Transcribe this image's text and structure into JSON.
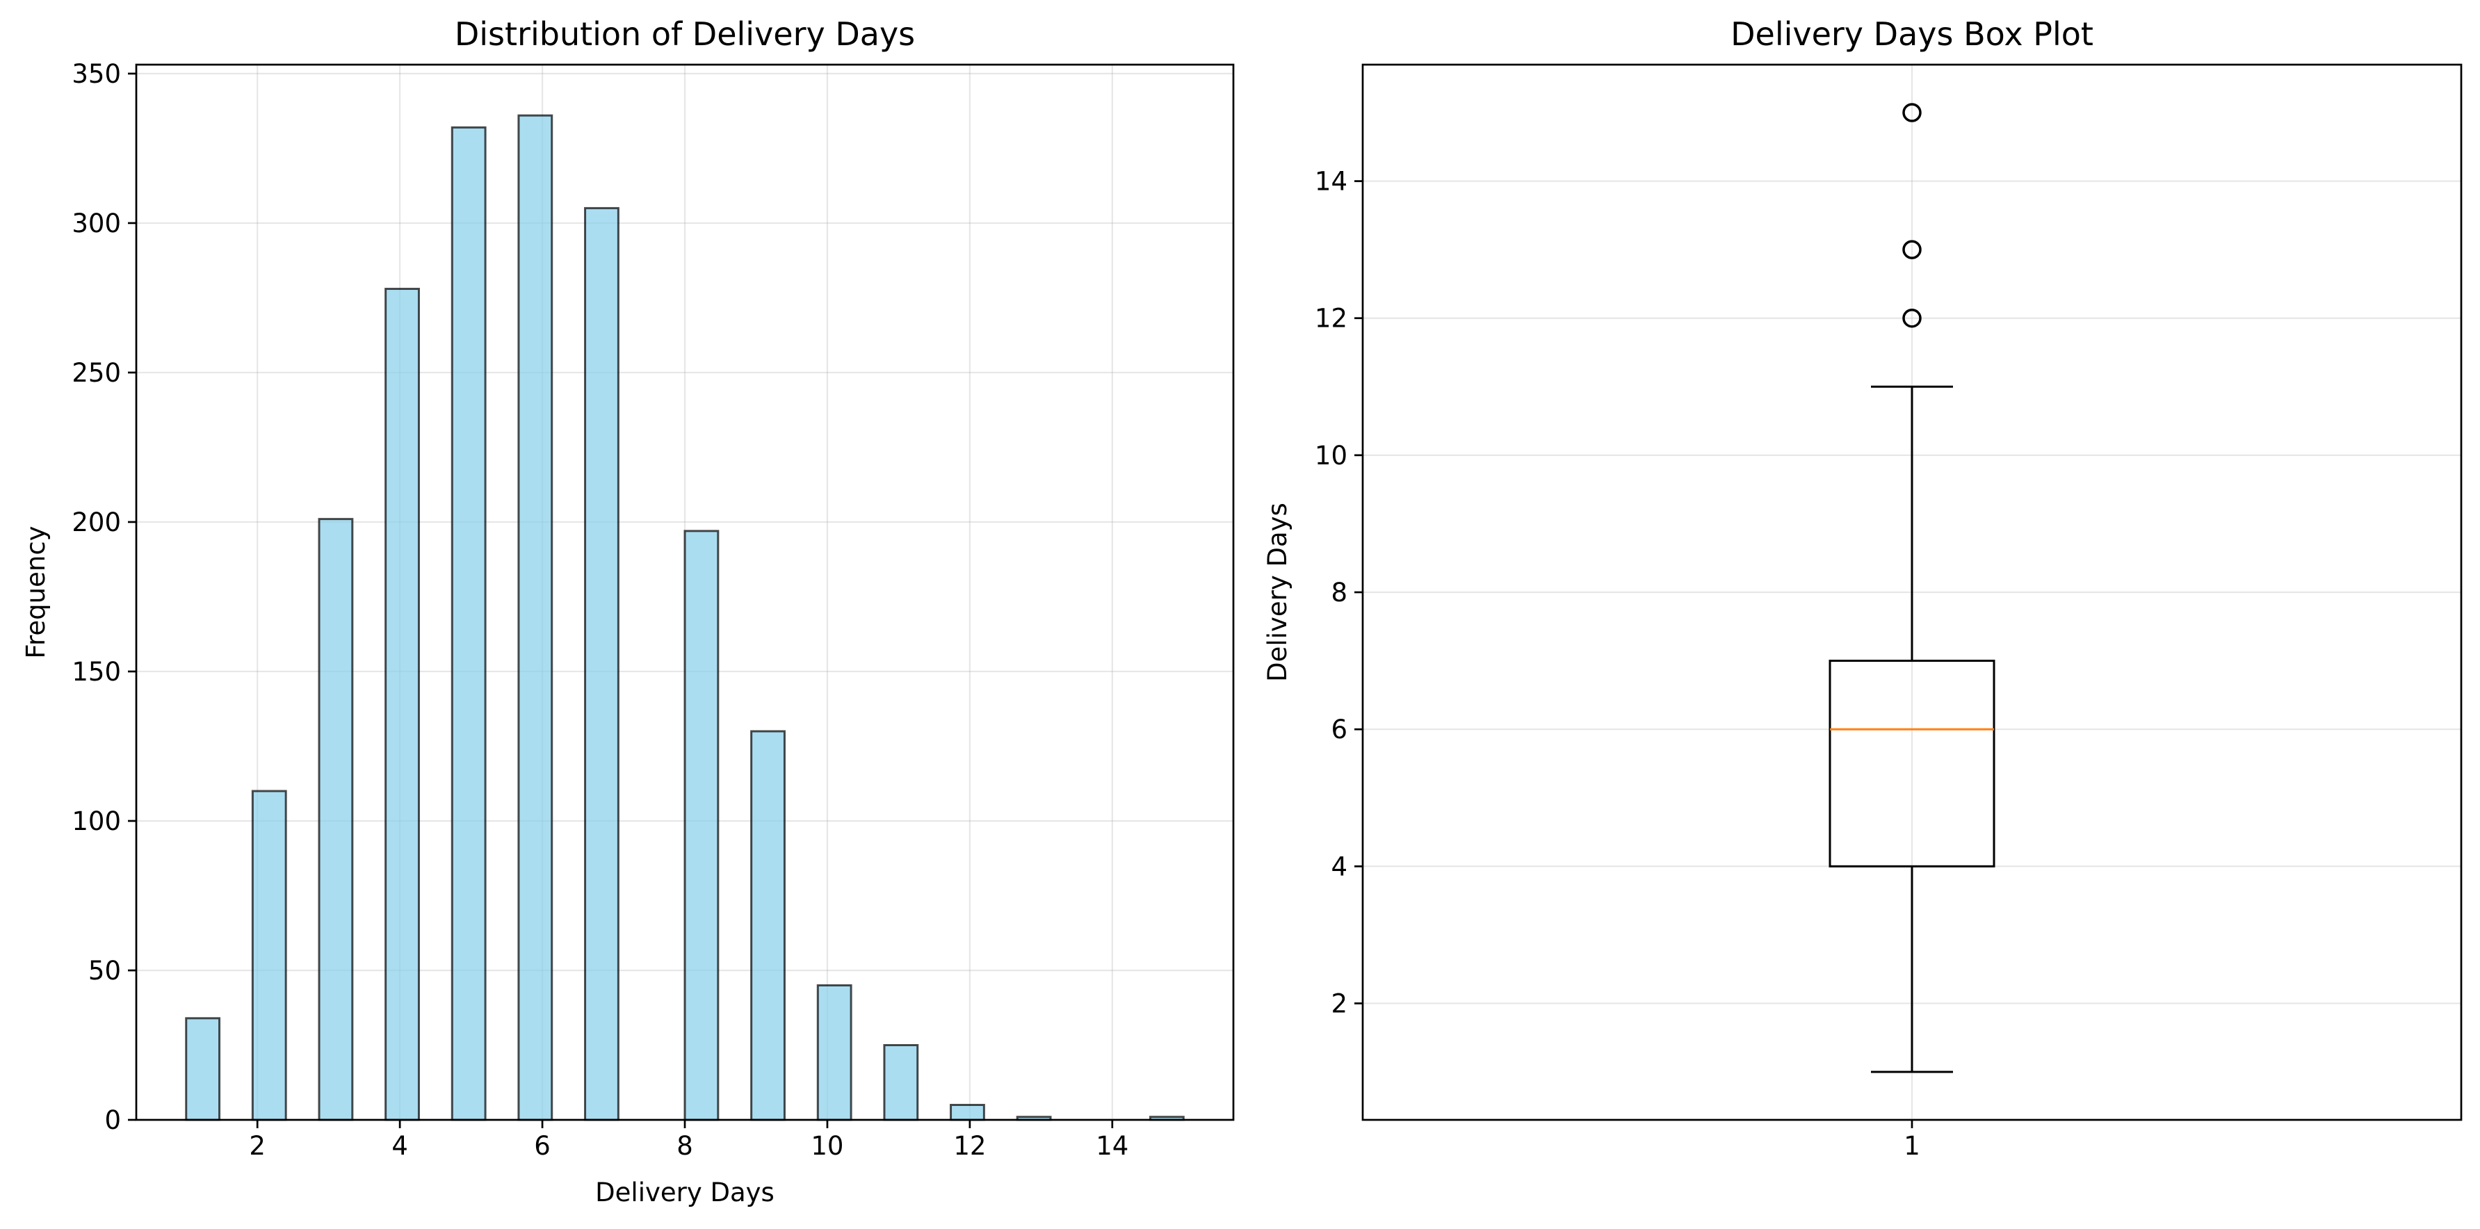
{
  "chart_data": [
    {
      "type": "bar",
      "title": "Distribution of Delivery Days",
      "xlabel": "Delivery Days",
      "ylabel": "Frequency",
      "xlim": [
        0.3,
        15.7
      ],
      "ylim": [
        0,
        353
      ],
      "xticks": [
        "2",
        "4",
        "6",
        "8",
        "10",
        "12",
        "14"
      ],
      "yticks": [
        "0",
        "50",
        "100",
        "150",
        "200",
        "250",
        "300",
        "350"
      ],
      "grid": true,
      "bar_color": "#87CEEB",
      "edge_color": "#000000",
      "bin_width": 0.4667,
      "bins": [
        {
          "x": 1.0,
          "value": 34
        },
        {
          "x": 1.9333,
          "value": 110
        },
        {
          "x": 2.8667,
          "value": 201
        },
        {
          "x": 3.8,
          "value": 278
        },
        {
          "x": 4.7333,
          "value": 332
        },
        {
          "x": 5.6667,
          "value": 336
        },
        {
          "x": 6.6,
          "value": 305
        },
        {
          "x": 8.0,
          "value": 197
        },
        {
          "x": 8.9333,
          "value": 130
        },
        {
          "x": 9.8667,
          "value": 45
        },
        {
          "x": 10.8,
          "value": 25
        },
        {
          "x": 11.7333,
          "value": 5
        },
        {
          "x": 12.6667,
          "value": 1
        },
        {
          "x": 14.5333,
          "value": 1
        }
      ]
    },
    {
      "type": "box",
      "title": "Delivery Days Box Plot",
      "xlabel": "",
      "ylabel": "Delivery Days",
      "ylim": [
        0.3,
        15.7
      ],
      "xticks": [
        "1"
      ],
      "yticks": [
        "2",
        "4",
        "6",
        "8",
        "10",
        "12",
        "14"
      ],
      "grid": true,
      "box": {
        "category": "1",
        "whisker_low": 1,
        "q1": 4,
        "median": 6,
        "q3": 7,
        "whisker_high": 11,
        "outliers": [
          12,
          13,
          15
        ]
      },
      "median_color": "#ff7f0e"
    }
  ]
}
